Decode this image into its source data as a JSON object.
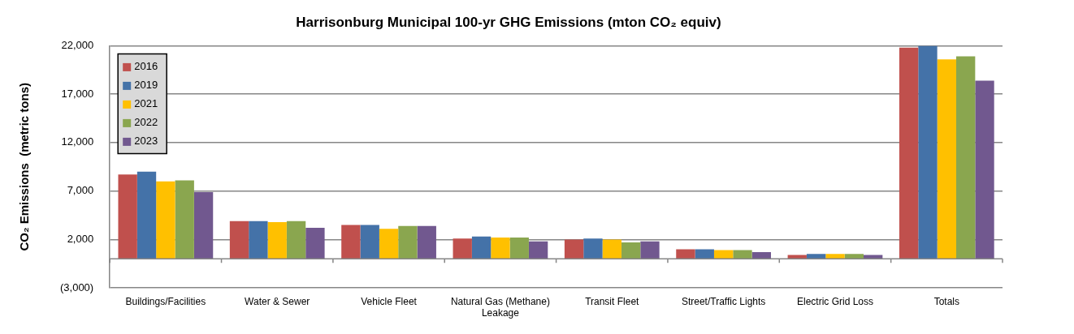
{
  "chart_data": {
    "type": "bar",
    "title": "Harrisonburg Municipal 100-yr GHG Emissions (mton CO₂ equiv)",
    "ylabel": "CO₂ Emissions  (metric tons)",
    "categories": [
      "Buildings/Facilities",
      "Water & Sewer",
      "Vehicle Fleet",
      "Natural Gas (Methane) Leakage",
      "Transit Fleet",
      "Street/Traffic Lights",
      "Electric Grid Loss",
      "Totals"
    ],
    "series": [
      {
        "name": "2016",
        "color": "#c0504d",
        "values": [
          8700,
          3900,
          3500,
          2100,
          2000,
          1000,
          400,
          21800
        ]
      },
      {
        "name": "2019",
        "color": "#4472a8",
        "values": [
          9000,
          3900,
          3500,
          2300,
          2100,
          1000,
          500,
          22000
        ]
      },
      {
        "name": "2021",
        "color": "#ffc000",
        "values": [
          8000,
          3800,
          3100,
          2200,
          2000,
          900,
          500,
          20600
        ]
      },
      {
        "name": "2022",
        "color": "#8aa64f",
        "values": [
          8100,
          3900,
          3400,
          2200,
          1700,
          900,
          500,
          20900
        ]
      },
      {
        "name": "2023",
        "color": "#71588f",
        "values": [
          6900,
          3200,
          3400,
          1800,
          1800,
          700,
          400,
          18400
        ]
      }
    ],
    "ylim": [
      -3000,
      22000
    ],
    "yticks": [
      {
        "value": -3000,
        "label": "(3,000)"
      },
      {
        "value": 2000,
        "label": "2,000"
      },
      {
        "value": 7000,
        "label": "7,000"
      },
      {
        "value": 12000,
        "label": "12,000"
      },
      {
        "value": 17000,
        "label": "17,000"
      },
      {
        "value": 22000,
        "label": "22,000"
      }
    ],
    "grid": "y",
    "legend": "top left"
  }
}
